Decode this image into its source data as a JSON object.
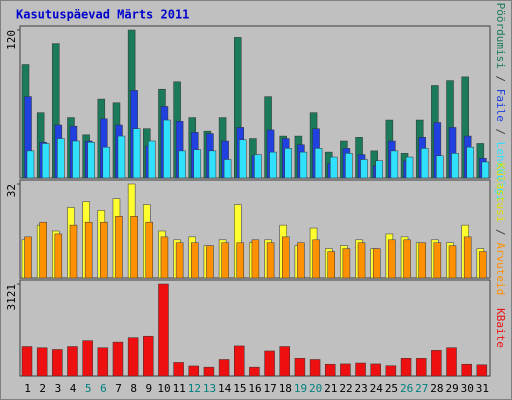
{
  "title": "Kasutuspäevad Märts 2011",
  "separator": " / ",
  "chart_data": [
    {
      "type": "bar",
      "ylim": [
        0,
        120
      ],
      "yticks": [
        120
      ],
      "series": [
        {
          "name": "Pöördumisi",
          "color": "#1a7a5a",
          "values": [
            92,
            53,
            109,
            49,
            35,
            64,
            61,
            120,
            40,
            72,
            78,
            49,
            38,
            49,
            114,
            32,
            66,
            34,
            34,
            53,
            21,
            30,
            33,
            22,
            47,
            20,
            47,
            75,
            79,
            82,
            28
          ]
        },
        {
          "name": "Faile",
          "color": "#2040e0",
          "values": [
            66,
            29,
            43,
            42,
            30,
            48,
            43,
            71,
            26,
            58,
            46,
            37,
            36,
            30,
            41,
            18,
            39,
            32,
            27,
            40,
            12,
            24,
            19,
            10,
            30,
            14,
            33,
            45,
            41,
            34,
            16
          ]
        },
        {
          "name": "Lehekülgi",
          "color": "#30e0ff",
          "values": [
            22,
            28,
            32,
            30,
            29,
            25,
            34,
            40,
            30,
            47,
            22,
            23,
            22,
            15,
            31,
            19,
            21,
            24,
            21,
            24,
            17,
            20,
            15,
            14,
            22,
            17,
            24,
            18,
            20,
            25,
            13
          ]
        }
      ]
    },
    {
      "type": "bar",
      "ylim": [
        0,
        32
      ],
      "yticks": [
        32
      ],
      "series": [
        {
          "name": "Külastusi",
          "color": "#ffff30",
          "values": [
            13,
            18,
            16,
            24,
            26,
            23,
            27,
            32,
            25,
            16,
            13,
            14,
            11,
            13,
            25,
            12,
            13,
            18,
            11,
            17,
            10,
            11,
            13,
            10,
            15,
            14,
            12,
            13,
            12,
            18,
            10
          ]
        },
        {
          "name": "Arvuteid",
          "color": "#ff9000",
          "values": [
            14,
            19,
            15,
            18,
            19,
            19,
            21,
            21,
            19,
            14,
            12,
            12,
            11,
            12,
            12,
            13,
            12,
            14,
            12,
            13,
            9,
            10,
            12,
            10,
            13,
            13,
            12,
            12,
            11,
            14,
            9
          ]
        }
      ]
    },
    {
      "type": "bar",
      "ylim": [
        0,
        3121
      ],
      "yticks": [
        3121
      ],
      "categories": [
        "1",
        "2",
        "3",
        "4",
        "5",
        "6",
        "7",
        "8",
        "9",
        "10",
        "11",
        "12",
        "13",
        "14",
        "15",
        "16",
        "17",
        "18",
        "19",
        "20",
        "21",
        "22",
        "23",
        "24",
        "25",
        "26",
        "27",
        "28",
        "29",
        "30",
        "31"
      ],
      "category_colors": [
        "#000",
        "#000",
        "#000",
        "#000",
        "#008080",
        "#008080",
        "#000",
        "#000",
        "#000",
        "#000",
        "#000",
        "#008080",
        "#008080",
        "#000",
        "#000",
        "#000",
        "#000",
        "#000",
        "#008080",
        "#008080",
        "#000",
        "#000",
        "#000",
        "#000",
        "#000",
        "#008080",
        "#008080",
        "#000",
        "#000",
        "#000",
        "#000"
      ],
      "series": [
        {
          "name": "KBaite",
          "color": "#ee1010",
          "values": [
            1000,
            960,
            900,
            1000,
            1200,
            960,
            1150,
            1300,
            1350,
            3121,
            460,
            340,
            300,
            560,
            1020,
            300,
            850,
            1000,
            600,
            560,
            400,
            410,
            440,
            410,
            350,
            600,
            600,
            870,
            960,
            400,
            380
          ]
        }
      ]
    }
  ]
}
